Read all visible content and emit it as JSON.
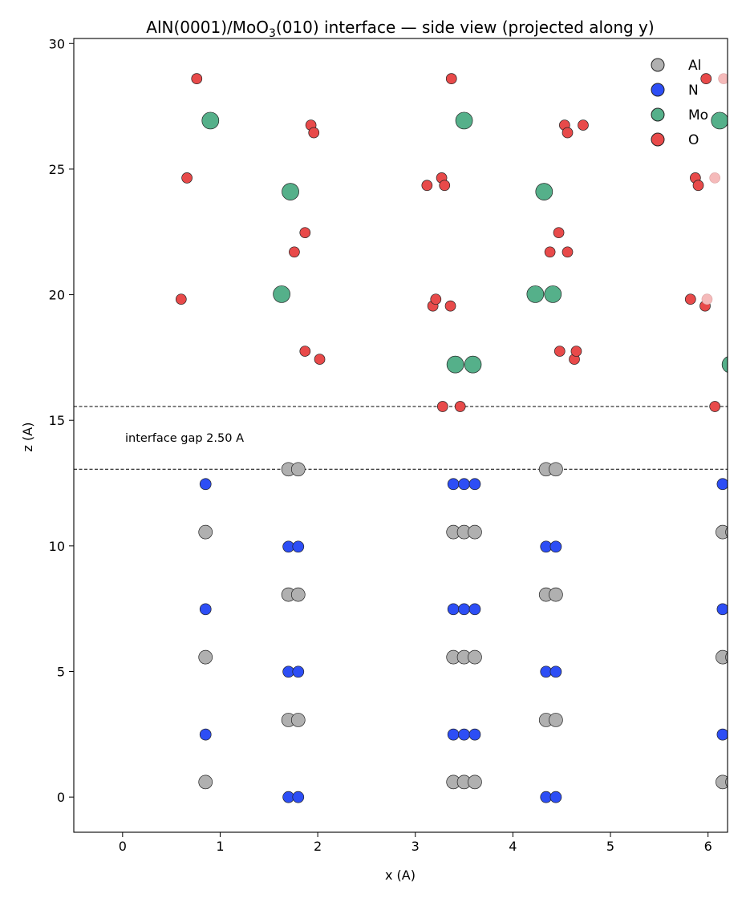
{
  "chart_data": {
    "type": "scatter",
    "title_main": "AlN(0001)/MoO",
    "title_sub": "3",
    "title_rest": "(010) interface — side view (projected along y)",
    "xlabel": "x (A)",
    "ylabel": "z (A)",
    "xlim": [
      -0.5,
      6.2
    ],
    "ylim": [
      -1.4,
      30.2
    ],
    "xticks": [
      0,
      1,
      2,
      3,
      4,
      5,
      6
    ],
    "yticks": [
      0,
      5,
      10,
      15,
      20,
      25,
      30
    ],
    "grid": false,
    "legend_position": "top-right",
    "annotation": "interface gap 2.50 A",
    "interface_lines": [
      13.05,
      15.55
    ],
    "series": [
      {
        "name": "Al",
        "color": "#b0b0b0",
        "points": [
          [
            0.85,
            0.6
          ],
          [
            3.39,
            0.6
          ],
          [
            3.5,
            0.6
          ],
          [
            3.61,
            0.6
          ],
          [
            6.15,
            0.6
          ],
          [
            6.25,
            0.6
          ],
          [
            1.7,
            3.07
          ],
          [
            1.8,
            3.07
          ],
          [
            4.34,
            3.07
          ],
          [
            4.44,
            3.07
          ],
          [
            0.85,
            5.57
          ],
          [
            3.39,
            5.57
          ],
          [
            3.5,
            5.57
          ],
          [
            3.61,
            5.57
          ],
          [
            6.15,
            5.57
          ],
          [
            6.25,
            5.57
          ],
          [
            1.7,
            8.06
          ],
          [
            1.8,
            8.06
          ],
          [
            4.34,
            8.06
          ],
          [
            4.44,
            8.06
          ],
          [
            0.85,
            10.55
          ],
          [
            3.39,
            10.55
          ],
          [
            3.5,
            10.55
          ],
          [
            3.61,
            10.55
          ],
          [
            6.15,
            10.55
          ],
          [
            6.25,
            10.55
          ],
          [
            1.7,
            13.05
          ],
          [
            1.8,
            13.05
          ],
          [
            4.34,
            13.05
          ],
          [
            4.44,
            13.05
          ]
        ]
      },
      {
        "name": "N",
        "color": "#2d4ef5",
        "points": [
          [
            1.7,
            0.0
          ],
          [
            1.8,
            0.0
          ],
          [
            4.34,
            0.0
          ],
          [
            4.44,
            0.0
          ],
          [
            0.85,
            2.49
          ],
          [
            3.39,
            2.49
          ],
          [
            3.5,
            2.49
          ],
          [
            3.61,
            2.49
          ],
          [
            6.15,
            2.49
          ],
          [
            1.7,
            4.99
          ],
          [
            1.8,
            4.99
          ],
          [
            4.34,
            4.99
          ],
          [
            4.44,
            4.99
          ],
          [
            0.85,
            7.48
          ],
          [
            3.39,
            7.48
          ],
          [
            3.5,
            7.48
          ],
          [
            3.61,
            7.48
          ],
          [
            6.15,
            7.48
          ],
          [
            1.7,
            9.97
          ],
          [
            1.8,
            9.97
          ],
          [
            4.34,
            9.97
          ],
          [
            4.44,
            9.97
          ],
          [
            0.85,
            12.46
          ],
          [
            3.39,
            12.46
          ],
          [
            3.5,
            12.46
          ],
          [
            3.61,
            12.46
          ],
          [
            6.15,
            12.46
          ]
        ]
      },
      {
        "name": "Mo",
        "color": "#55b08a",
        "points": [
          [
            3.41,
            17.22
          ],
          [
            3.59,
            17.22
          ],
          [
            6.23,
            17.22
          ],
          [
            1.63,
            20.02
          ],
          [
            4.23,
            20.02
          ],
          [
            4.41,
            20.02
          ],
          [
            1.72,
            24.1
          ],
          [
            4.32,
            24.1
          ],
          [
            0.9,
            26.93
          ],
          [
            3.5,
            26.93
          ],
          [
            6.12,
            26.93
          ]
        ]
      },
      {
        "name": "O",
        "color": "#e84a4a",
        "points": [
          [
            3.28,
            15.55
          ],
          [
            3.46,
            15.55
          ],
          [
            6.07,
            15.55
          ],
          [
            1.87,
            17.75
          ],
          [
            2.02,
            17.43
          ],
          [
            4.48,
            17.75
          ],
          [
            4.63,
            17.43
          ],
          [
            4.65,
            17.75
          ],
          [
            0.6,
            19.82
          ],
          [
            3.18,
            19.55
          ],
          [
            3.21,
            19.82
          ],
          [
            3.36,
            19.55
          ],
          [
            5.82,
            19.82
          ],
          [
            5.97,
            19.55
          ],
          [
            1.76,
            21.7
          ],
          [
            1.87,
            22.47
          ],
          [
            4.38,
            21.7
          ],
          [
            4.47,
            22.47
          ],
          [
            4.56,
            21.7
          ],
          [
            0.66,
            24.65
          ],
          [
            3.12,
            24.35
          ],
          [
            3.27,
            24.65
          ],
          [
            3.3,
            24.35
          ],
          [
            5.87,
            24.65
          ],
          [
            5.9,
            24.35
          ],
          [
            1.93,
            26.75
          ],
          [
            1.96,
            26.45
          ],
          [
            4.53,
            26.75
          ],
          [
            4.56,
            26.45
          ],
          [
            4.72,
            26.75
          ],
          [
            0.76,
            28.6
          ],
          [
            3.37,
            28.6
          ],
          [
            5.98,
            28.6
          ]
        ]
      },
      {
        "name": "",
        "color": "#f5baba",
        "points": [
          [
            5.99,
            19.82
          ],
          [
            6.07,
            24.65
          ],
          [
            6.16,
            28.6
          ]
        ]
      }
    ],
    "legend": [
      {
        "label": "Al",
        "color": "#b0b0b0"
      },
      {
        "label": "N",
        "color": "#2d4ef5"
      },
      {
        "label": "Mo",
        "color": "#55b08a"
      },
      {
        "label": "O",
        "color": "#e84a4a"
      }
    ]
  }
}
